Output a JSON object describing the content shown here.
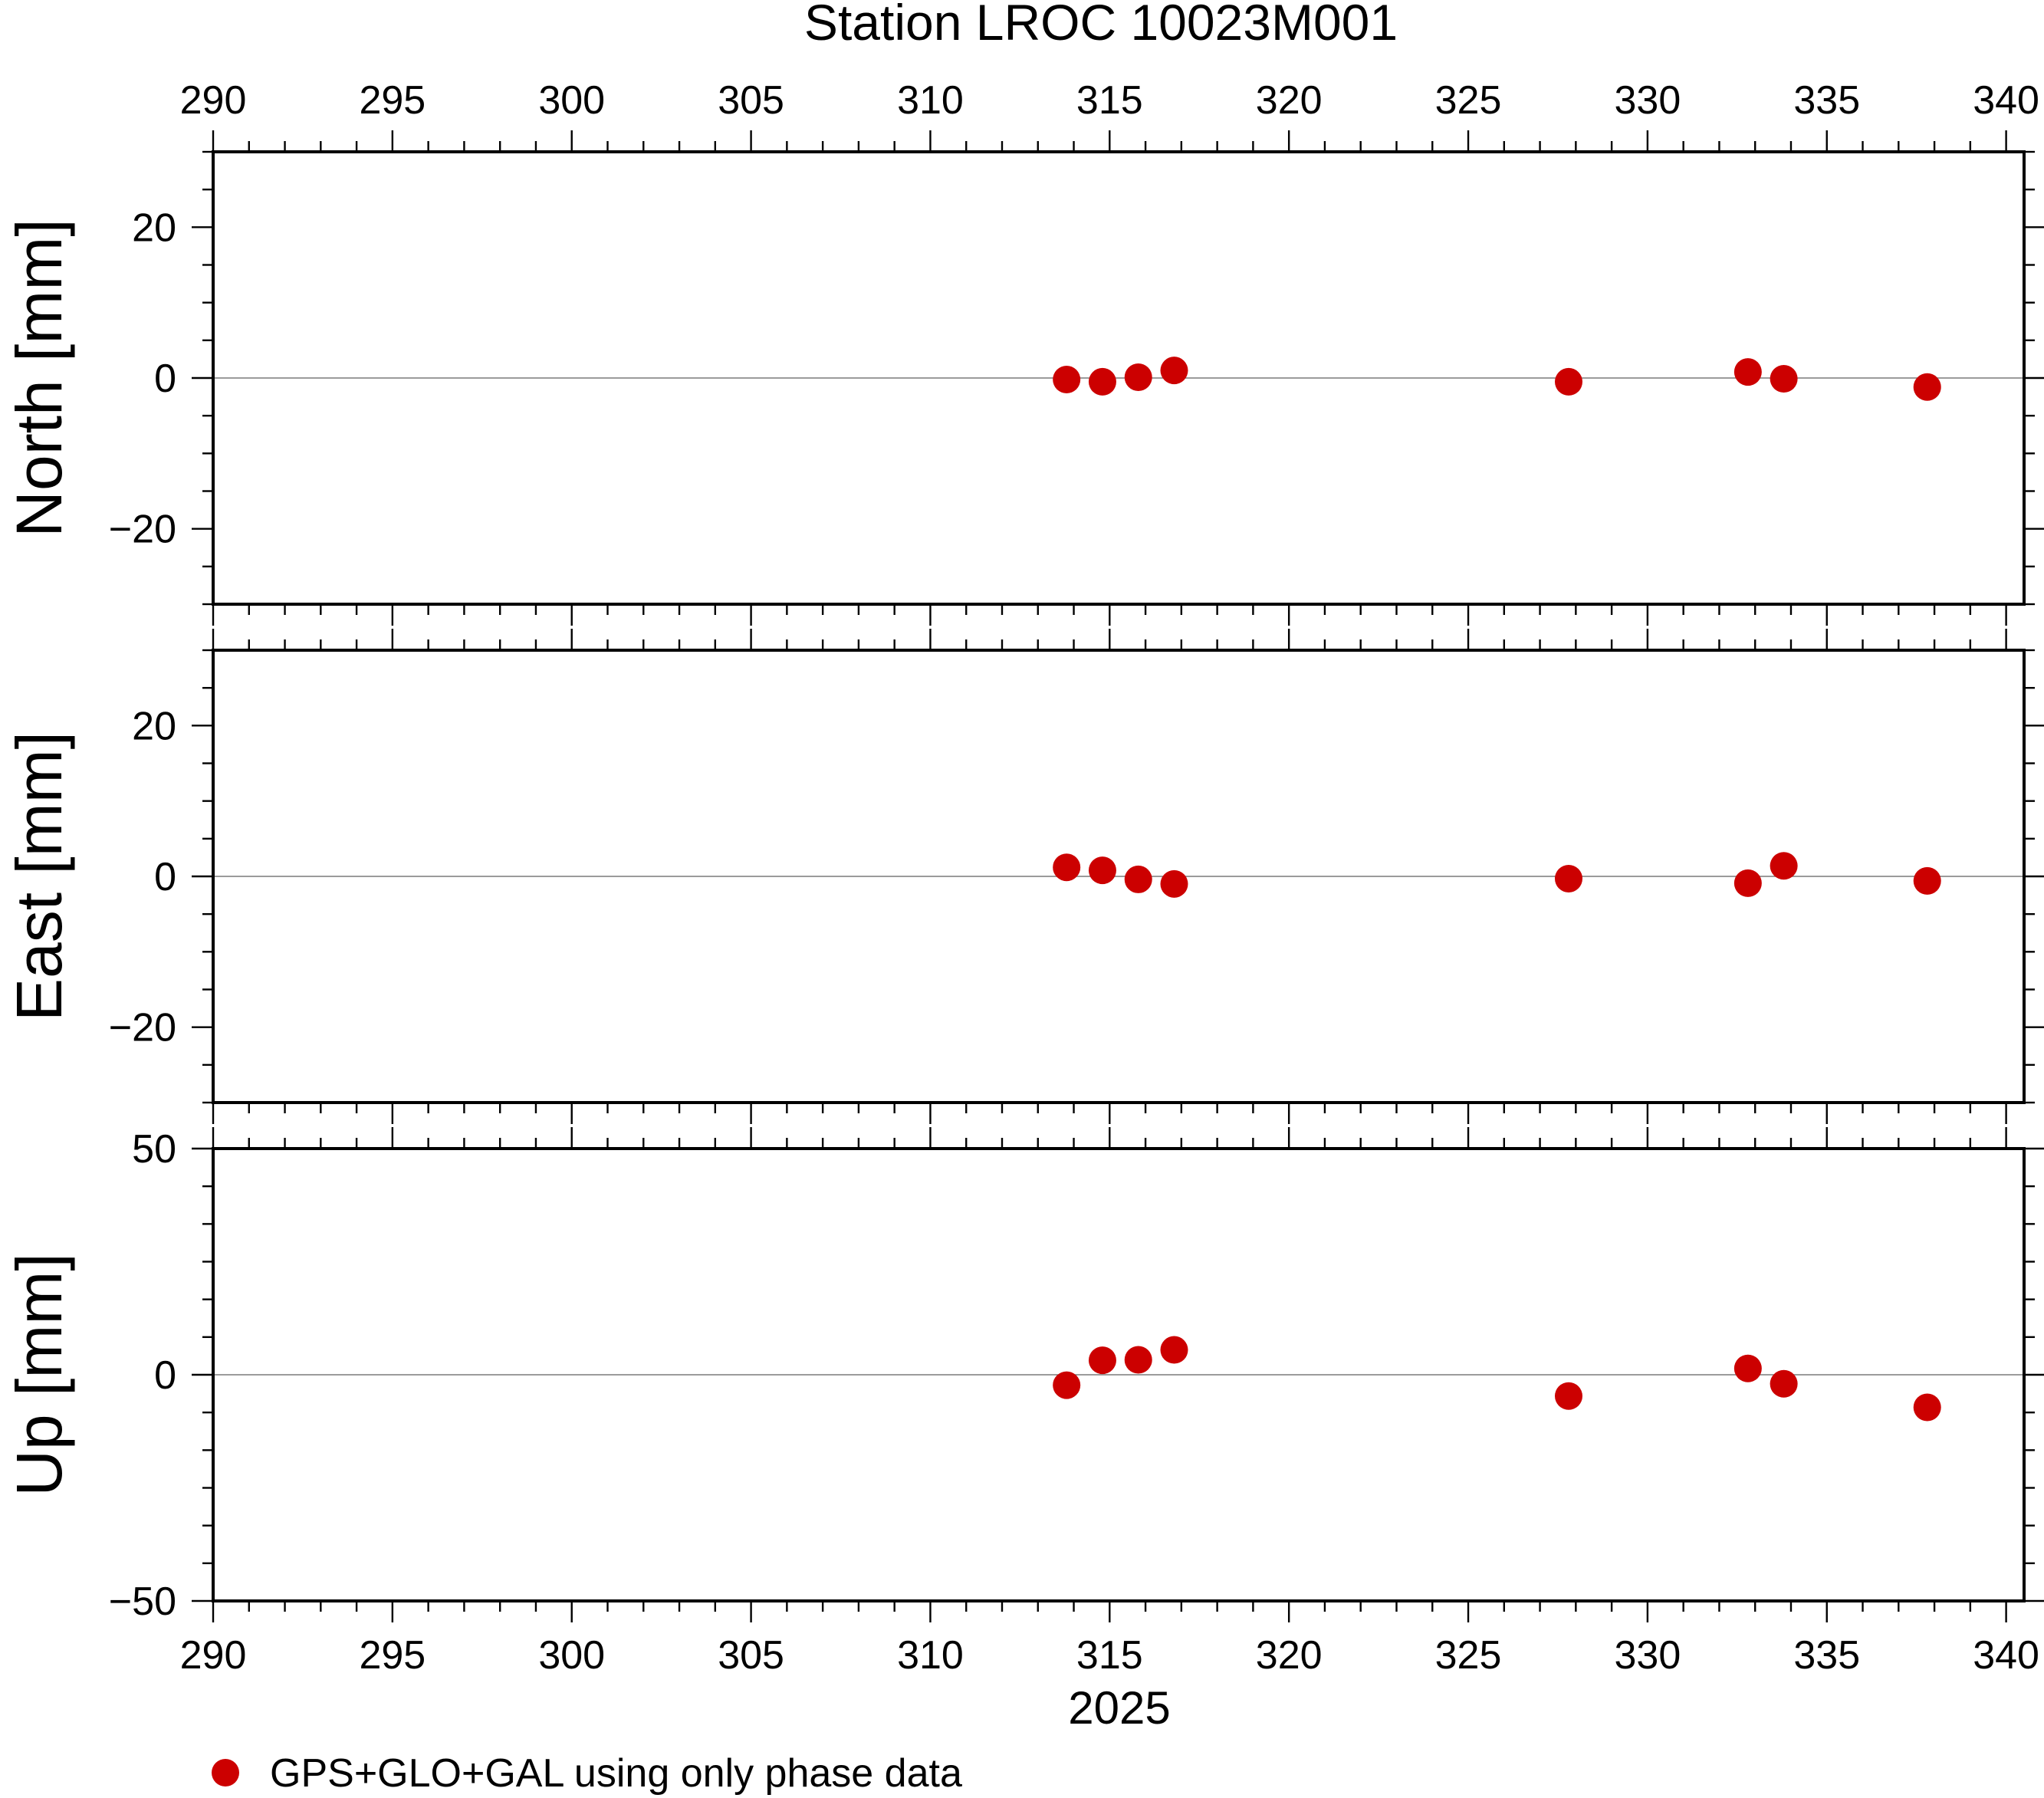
{
  "chart_data": {
    "type": "scatter",
    "title": "Station LROC 10023M001",
    "xlabel": "2025",
    "xlim": [
      290,
      340.5
    ],
    "x_ticks": [
      290,
      295,
      300,
      305,
      310,
      315,
      320,
      325,
      330,
      335,
      340
    ],
    "marker_color": "#cc0000",
    "grid": false,
    "legend": {
      "placement": "bottom-left",
      "entries": [
        {
          "label": "GPS+GLO+GAL using only phase data",
          "color": "#cc0000"
        }
      ]
    },
    "panels": [
      {
        "id": "north",
        "ylabel": "North [mm]",
        "ylim": [
          -30,
          30
        ],
        "y_ticks": [
          -20,
          0,
          20
        ],
        "y_tick_labels": [
          "−20",
          "0",
          "20"
        ],
        "x": [
          313.8,
          314.8,
          315.8,
          316.8,
          327.8,
          332.8,
          333.8,
          337.8
        ],
        "y": [
          -0.2,
          -0.5,
          0.1,
          1.0,
          -0.5,
          0.8,
          -0.1,
          -1.2
        ]
      },
      {
        "id": "east",
        "ylabel": "East [mm]",
        "ylim": [
          -30,
          30
        ],
        "y_ticks": [
          -20,
          0,
          20
        ],
        "y_tick_labels": [
          "−20",
          "0",
          "20"
        ],
        "x": [
          313.8,
          314.8,
          315.8,
          316.8,
          327.8,
          332.8,
          333.8,
          337.8
        ],
        "y": [
          1.2,
          0.8,
          -0.4,
          -1.0,
          -0.3,
          -0.9,
          1.4,
          -0.6
        ]
      },
      {
        "id": "up",
        "ylabel": "Up [mm]",
        "ylim": [
          -50,
          50
        ],
        "y_ticks": [
          -50,
          0,
          50
        ],
        "y_tick_labels": [
          "−50",
          "0",
          "50"
        ],
        "x": [
          313.8,
          314.8,
          315.8,
          316.8,
          327.8,
          332.8,
          333.8,
          337.8
        ],
        "y": [
          -2.3,
          3.2,
          3.3,
          5.5,
          -4.7,
          1.4,
          -2.0,
          -7.2
        ]
      }
    ]
  }
}
